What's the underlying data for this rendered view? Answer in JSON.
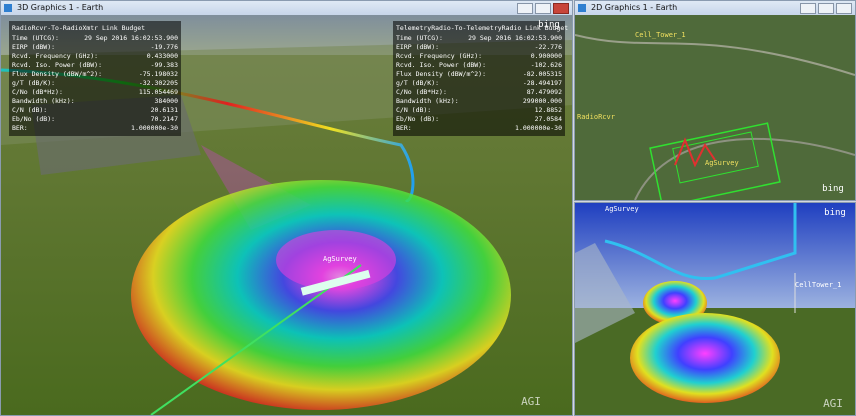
{
  "windows": [
    {
      "title": "3D Graphics 1 - Earth",
      "panels": [
        {
          "title": "RadioRcvr-To-RadioXmtr Link Budget",
          "rows": [
            {
              "label": "Time (UTCG):",
              "value": "29 Sep 2016 16:02:53.900"
            },
            {
              "label": "EIRP (dBW):",
              "value": "-19.776"
            },
            {
              "label": "Rcvd. Frequency (GHz):",
              "value": "0.433000"
            },
            {
              "label": "Rcvd. Iso. Power (dBW):",
              "value": "-99.383"
            },
            {
              "label": "Flux Density (dBW/m^2):",
              "value": "-75.198032"
            },
            {
              "label": "g/T (dB/K):",
              "value": "-32.302205"
            },
            {
              "label": "C/No (dB*Hz):",
              "value": "115.054469"
            },
            {
              "label": "Bandwidth (kHz):",
              "value": "384000"
            },
            {
              "label": "C/N (dB):",
              "value": "20.6131"
            },
            {
              "label": "Eb/No (dB):",
              "value": "70.2147"
            },
            {
              "label": "BER:",
              "value": "1.000000e-30"
            }
          ]
        },
        {
          "title": "TelemetryRadio-To-TelemetryRadio Link Budget",
          "rows": [
            {
              "label": "Time (UTCG):",
              "value": "29 Sep 2016 16:02:53.900"
            },
            {
              "label": "EIRP (dBW):",
              "value": "-22.776"
            },
            {
              "label": "Rcvd. Frequency (GHz):",
              "value": "0.900000"
            },
            {
              "label": "Rcvd. Iso. Power (dBW):",
              "value": "-102.626"
            },
            {
              "label": "Flux Density (dBW/m^2):",
              "value": "-82.005315"
            },
            {
              "label": "g/T (dB/K):",
              "value": "-28.494197"
            },
            {
              "label": "C/No (dB*Hz):",
              "value": "87.479092"
            },
            {
              "label": "Bandwidth (kHz):",
              "value": "299000.000"
            },
            {
              "label": "C/N (dB):",
              "value": "12.8852"
            },
            {
              "label": "Eb/No (dB):",
              "value": "27.0584"
            },
            {
              "label": "BER:",
              "value": "1.000000e-30"
            }
          ]
        }
      ],
      "labels": [
        "AgSurvey"
      ],
      "logos": [
        "bing",
        "AGI"
      ]
    },
    {
      "title": "2D Graphics 1 - Earth",
      "labels": [
        "Cell_Tower_1",
        "AgSurvey",
        "RadioRcvr"
      ],
      "logos": [
        "bing"
      ]
    },
    {
      "labels": [
        "AgSurvey",
        "CellTower_1"
      ],
      "logos": [
        "bing",
        "AGI"
      ]
    }
  ]
}
